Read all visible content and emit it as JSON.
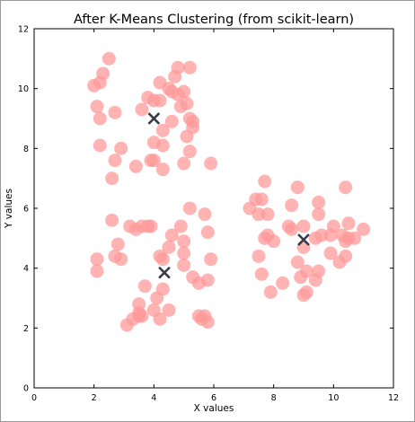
{
  "chart_data": {
    "type": "scatter",
    "title": "After K-Means Clustering (from scikit-learn)",
    "xlabel": "X values",
    "ylabel": "Y values",
    "xlim": [
      0,
      12
    ],
    "ylim": [
      0,
      12
    ],
    "xticks": [
      0,
      2,
      4,
      6,
      8,
      10,
      12
    ],
    "yticks": [
      0,
      2,
      4,
      6,
      8,
      10,
      12
    ],
    "grid": false,
    "point_color": "#ff9999",
    "centroid_color": "#3a3a48",
    "series": [
      {
        "values": [
          [
            2.0,
            10.1
          ],
          [
            2.2,
            10.2
          ],
          [
            2.3,
            10.5
          ],
          [
            2.5,
            11.0
          ],
          [
            2.1,
            9.4
          ],
          [
            2.2,
            9.0
          ],
          [
            2.7,
            9.2
          ],
          [
            2.2,
            8.1
          ],
          [
            2.9,
            8.0
          ],
          [
            2.7,
            7.6
          ],
          [
            2.6,
            7.0
          ],
          [
            3.4,
            7.4
          ],
          [
            3.6,
            9.3
          ],
          [
            3.8,
            9.7
          ],
          [
            4.0,
            9.6
          ],
          [
            4.2,
            9.6
          ],
          [
            4.2,
            10.2
          ],
          [
            4.7,
            10.4
          ],
          [
            4.8,
            10.7
          ],
          [
            5.2,
            10.7
          ],
          [
            4.5,
            10.0
          ],
          [
            4.6,
            9.9
          ],
          [
            5.0,
            9.9
          ],
          [
            4.9,
            9.4
          ],
          [
            5.1,
            9.5
          ],
          [
            5.2,
            9.0
          ],
          [
            5.3,
            8.9
          ],
          [
            5.3,
            8.7
          ],
          [
            5.1,
            8.4
          ],
          [
            4.6,
            8.9
          ],
          [
            4.0,
            8.2
          ],
          [
            4.3,
            8.1
          ],
          [
            4.0,
            7.6
          ],
          [
            3.9,
            7.6
          ],
          [
            4.3,
            7.3
          ],
          [
            5.2,
            7.9
          ],
          [
            5.0,
            7.5
          ],
          [
            5.9,
            7.5
          ],
          [
            4.8,
            9.8
          ],
          [
            4.3,
            8.6
          ]
        ]
      },
      {
        "values": [
          [
            7.7,
            6.9
          ],
          [
            7.6,
            6.3
          ],
          [
            7.4,
            6.3
          ],
          [
            7.2,
            6.0
          ],
          [
            7.5,
            5.8
          ],
          [
            7.8,
            5.8
          ],
          [
            8.6,
            6.1
          ],
          [
            8.8,
            6.7
          ],
          [
            9.5,
            6.2
          ],
          [
            9.5,
            5.8
          ],
          [
            10.4,
            6.7
          ],
          [
            10.5,
            5.5
          ],
          [
            9.0,
            5.4
          ],
          [
            9.4,
            5.0
          ],
          [
            9.9,
            5.1
          ],
          [
            10.0,
            5.4
          ],
          [
            10.3,
            5.1
          ],
          [
            10.4,
            4.9
          ],
          [
            10.7,
            5.0
          ],
          [
            11.0,
            5.3
          ],
          [
            10.4,
            4.4
          ],
          [
            10.2,
            4.2
          ],
          [
            9.9,
            4.5
          ],
          [
            9.0,
            4.7
          ],
          [
            8.8,
            4.2
          ],
          [
            9.1,
            3.9
          ],
          [
            8.9,
            3.7
          ],
          [
            9.5,
            3.9
          ],
          [
            9.4,
            3.6
          ],
          [
            9.1,
            3.2
          ],
          [
            9.0,
            3.1
          ],
          [
            8.3,
            3.5
          ],
          [
            7.9,
            3.2
          ],
          [
            7.6,
            3.8
          ],
          [
            7.5,
            4.4
          ],
          [
            7.7,
            5.0
          ],
          [
            7.8,
            5.1
          ],
          [
            8.0,
            4.9
          ],
          [
            8.5,
            5.4
          ],
          [
            8.6,
            5.3
          ],
          [
            9.6,
            5.1
          ],
          [
            10.5,
            5.0
          ]
        ]
      },
      {
        "values": [
          [
            2.6,
            5.6
          ],
          [
            3.6,
            5.4
          ],
          [
            3.4,
            5.3
          ],
          [
            3.2,
            5.4
          ],
          [
            3.8,
            5.4
          ],
          [
            3.9,
            5.4
          ],
          [
            4.6,
            5.1
          ],
          [
            5.2,
            6.0
          ],
          [
            5.7,
            5.8
          ],
          [
            5.8,
            5.2
          ],
          [
            5.9,
            4.3
          ],
          [
            5.8,
            3.6
          ],
          [
            5.5,
            3.5
          ],
          [
            5.3,
            3.7
          ],
          [
            5.0,
            4.1
          ],
          [
            5.0,
            4.5
          ],
          [
            5.0,
            4.9
          ],
          [
            4.9,
            5.4
          ],
          [
            4.5,
            4.7
          ],
          [
            4.2,
            4.4
          ],
          [
            4.3,
            4.3
          ],
          [
            4.3,
            3.3
          ],
          [
            4.1,
            3.0
          ],
          [
            4.0,
            2.6
          ],
          [
            3.7,
            3.4
          ],
          [
            3.5,
            2.8
          ],
          [
            3.5,
            2.4
          ],
          [
            3.3,
            2.3
          ],
          [
            3.1,
            2.1
          ],
          [
            2.8,
            4.8
          ],
          [
            2.7,
            4.4
          ],
          [
            2.9,
            4.3
          ],
          [
            2.1,
            4.3
          ],
          [
            2.1,
            3.9
          ],
          [
            3.6,
            2.4
          ],
          [
            4.5,
            2.6
          ],
          [
            5.6,
            2.3
          ],
          [
            5.7,
            2.4
          ],
          [
            5.8,
            2.2
          ],
          [
            5.5,
            2.4
          ],
          [
            4.2,
            2.3
          ],
          [
            3.5,
            2.5
          ]
        ]
      }
    ],
    "centroids": [
      [
        4.0,
        9.0
      ],
      [
        9.0,
        4.95
      ],
      [
        4.35,
        3.85
      ]
    ]
  }
}
